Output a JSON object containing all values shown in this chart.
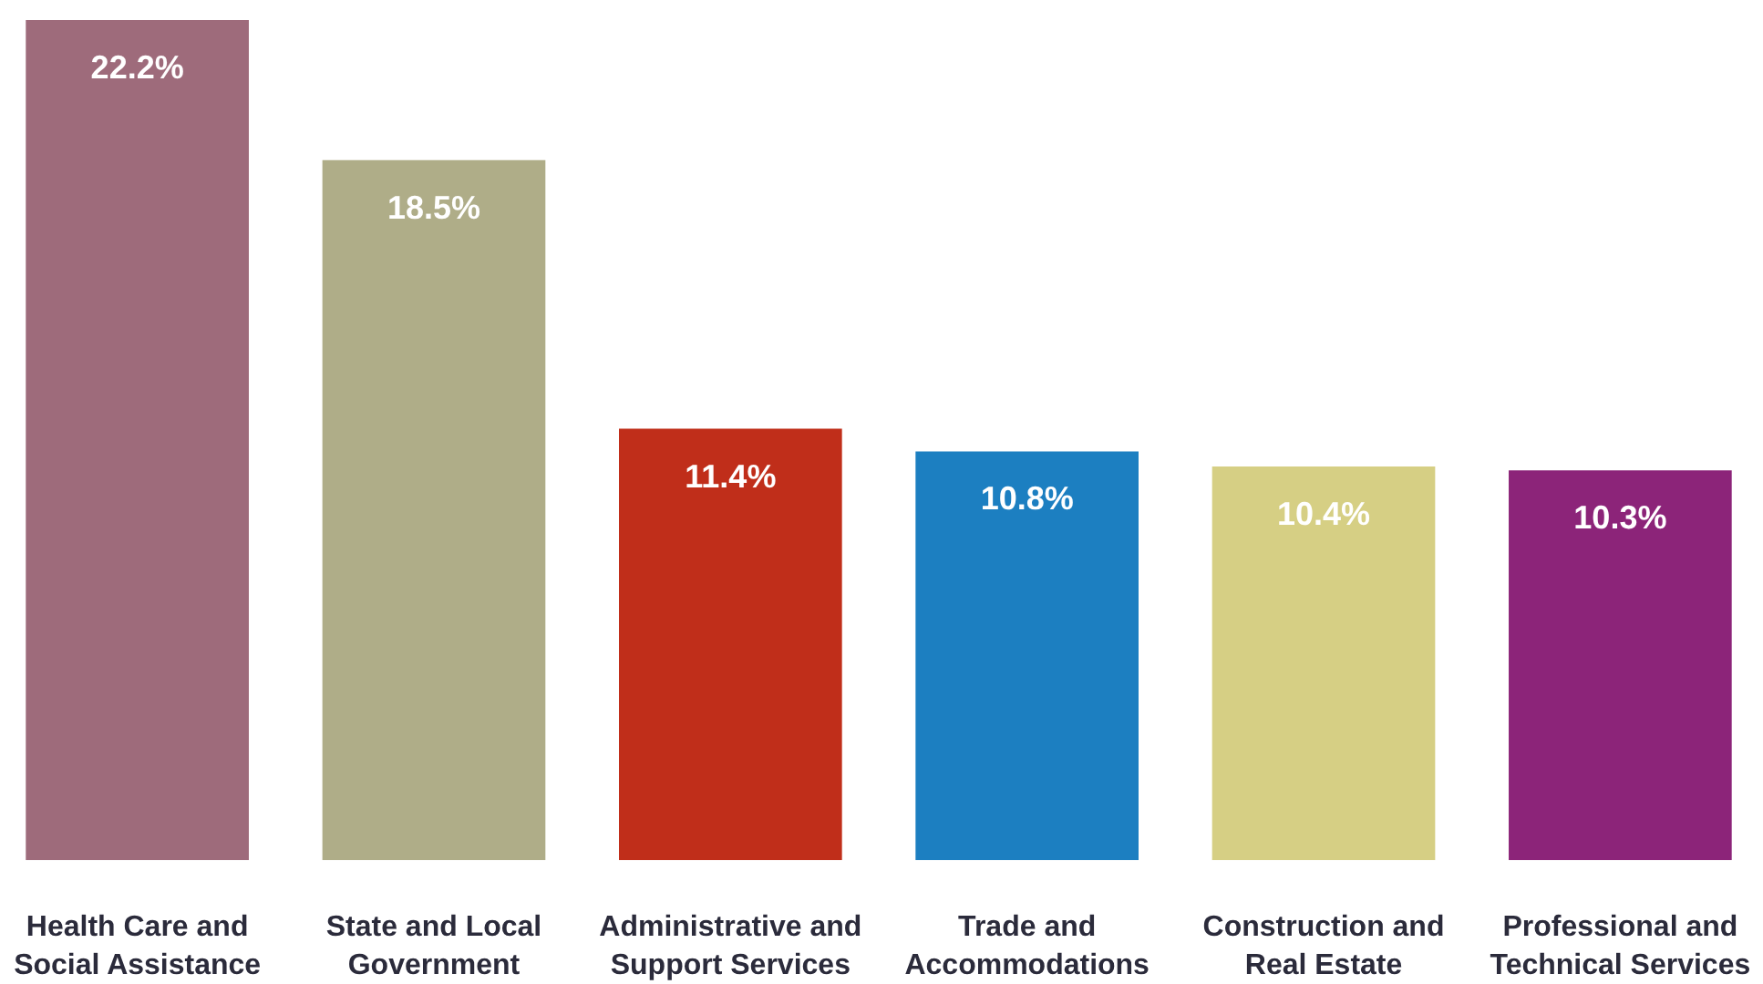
{
  "chart_data": {
    "type": "bar",
    "categories": [
      "Health Care and Social Assistance",
      "State and Local Government",
      "Administrative and Support Services",
      "Trade and Accommodations",
      "Construction and Real Estate",
      "Professional and Technical Services"
    ],
    "values": [
      22.2,
      18.5,
      11.4,
      10.8,
      10.4,
      10.3
    ],
    "value_labels": [
      "22.2%",
      "18.5%",
      "11.4%",
      "10.8%",
      "10.4%",
      "10.3%"
    ],
    "colors": [
      "#9e6b7b",
      "#afad88",
      "#c02e1a",
      "#1c7fc1",
      "#d6cf84",
      "#8c2479"
    ]
  }
}
